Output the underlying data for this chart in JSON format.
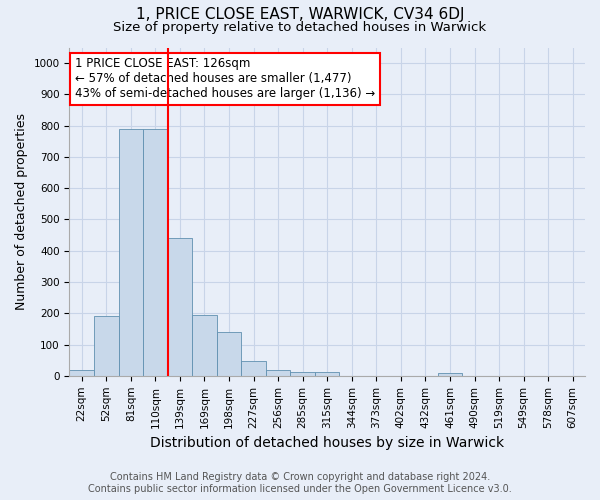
{
  "title": "1, PRICE CLOSE EAST, WARWICK, CV34 6DJ",
  "subtitle": "Size of property relative to detached houses in Warwick",
  "xlabel": "Distribution of detached houses by size in Warwick",
  "ylabel": "Number of detached properties",
  "footnote1": "Contains HM Land Registry data © Crown copyright and database right 2024.",
  "footnote2": "Contains public sector information licensed under the Open Government Licence v3.0.",
  "bar_labels": [
    "22sqm",
    "52sqm",
    "81sqm",
    "110sqm",
    "139sqm",
    "169sqm",
    "198sqm",
    "227sqm",
    "256sqm",
    "285sqm",
    "315sqm",
    "344sqm",
    "373sqm",
    "402sqm",
    "432sqm",
    "461sqm",
    "490sqm",
    "519sqm",
    "549sqm",
    "578sqm",
    "607sqm"
  ],
  "bar_values": [
    18,
    190,
    790,
    790,
    440,
    195,
    140,
    48,
    18,
    13,
    13,
    0,
    0,
    0,
    0,
    8,
    0,
    0,
    0,
    0,
    0
  ],
  "bar_color": "#c8d8ea",
  "bar_edge_color": "#6090b0",
  "vline_x_index": 3.5,
  "vline_color": "red",
  "annotation_title": "1 PRICE CLOSE EAST: 126sqm",
  "annotation_line1": "← 57% of detached houses are smaller (1,477)",
  "annotation_line2": "43% of semi-detached houses are larger (1,136) →",
  "annotation_box_color": "white",
  "annotation_box_edge_color": "red",
  "ylim": [
    0,
    1050
  ],
  "yticks": [
    0,
    100,
    200,
    300,
    400,
    500,
    600,
    700,
    800,
    900,
    1000
  ],
  "grid_color": "#c8d4e8",
  "background_color": "#e8eef8",
  "title_fontsize": 11,
  "subtitle_fontsize": 9.5,
  "xlabel_fontsize": 10,
  "ylabel_fontsize": 9,
  "tick_fontsize": 7.5,
  "annotation_fontsize": 8.5,
  "footnote_fontsize": 7
}
